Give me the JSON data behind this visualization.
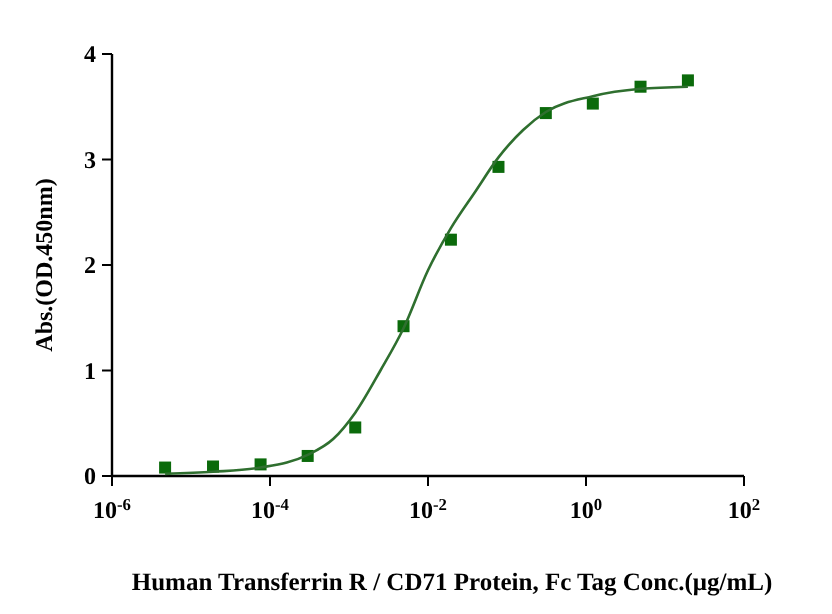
{
  "chart_data": {
    "type": "scatter",
    "xlabel": "Human Transferrin R / CD71 Protein, Fc Tag  Conc.(μg/mL)",
    "ylabel": "Abs.(OD.450nm)",
    "log": "x",
    "xlim": [
      1e-06,
      100
    ],
    "ylim": [
      0,
      4
    ],
    "xticks": [
      {
        "value": 1e-06,
        "label": "10$^{-6}$"
      },
      {
        "value": 0.0001,
        "label": "10$^{-4}$"
      },
      {
        "value": 0.01,
        "label": "10$^{-2}$"
      },
      {
        "value": 1,
        "label": "10$^{0}$"
      },
      {
        "value": 100,
        "label": "10$^{2}$"
      }
    ],
    "yticks": [
      0,
      1,
      2,
      3,
      4
    ],
    "grid": false,
    "series": [
      {
        "marker": "square",
        "color": "#0b6a0b",
        "x": [
          4.7e-06,
          1.9e-05,
          7.6e-05,
          0.0003,
          0.0012,
          0.0049,
          0.0195,
          0.078,
          0.31,
          1.22,
          4.9,
          19.5
        ],
        "values": [
          0.08,
          0.09,
          0.11,
          0.19,
          0.46,
          1.42,
          2.24,
          2.93,
          3.44,
          3.53,
          3.69,
          3.75
        ]
      },
      {
        "type": "line",
        "marker": "none",
        "line_style": "solid",
        "color": "#2f6f2f",
        "x": [
          4.7e-06,
          1.9e-05,
          7.6e-05,
          0.0003,
          0.00063,
          0.0012,
          0.0025,
          0.0049,
          0.01,
          0.0195,
          0.04,
          0.078,
          0.16,
          0.31,
          1.22,
          4.9,
          19.5
        ],
        "values": [
          0.02,
          0.04,
          0.08,
          0.2,
          0.35,
          0.6,
          1.0,
          1.4,
          1.95,
          2.35,
          2.7,
          3.02,
          3.28,
          3.45,
          3.6,
          3.67,
          3.69
        ]
      }
    ]
  }
}
